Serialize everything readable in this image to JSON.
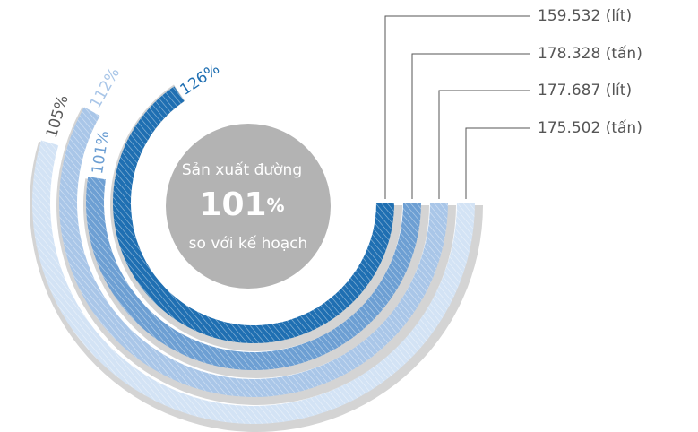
{
  "chart_data": {
    "type": "radial_bar",
    "values": [
      126,
      101,
      112,
      105
    ],
    "value_labels": [
      "126%",
      "101%",
      "112%",
      "105%"
    ],
    "annotations": [
      "159.532 (lít)",
      "178.328 (tấn)",
      "177.687 (lít)",
      "175.502 (tấn)"
    ],
    "colors": [
      "#1f6fb2",
      "#6d9fd3",
      "#a9c6e8",
      "#d3e3f5"
    ],
    "label_colors": [
      "#1f6fb2",
      "#6d9fd3",
      "#a9c6e8",
      "#5a5a5a"
    ],
    "center_text": {
      "line1": "Sản xuất đường",
      "value": "101",
      "unit": "%",
      "line2": "so với kế hoạch"
    }
  }
}
